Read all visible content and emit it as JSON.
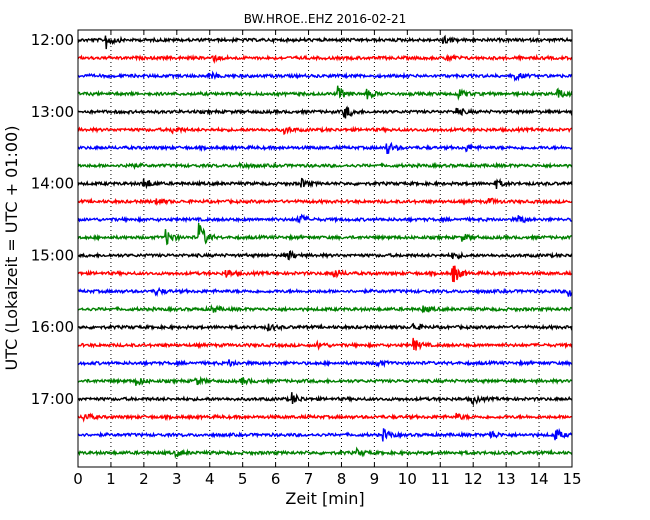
{
  "chart_data": {
    "type": "line",
    "title": "BW.HROE..EHZ 2016-02-21",
    "xlabel": "Zeit  [min]",
    "ylabel": "UTC (Lokalzeit = UTC + 01:00)",
    "xlim": [
      0,
      15
    ],
    "xticks": [
      0,
      1,
      2,
      3,
      4,
      5,
      6,
      7,
      8,
      9,
      10,
      11,
      12,
      13,
      14,
      15
    ],
    "yticks": [
      {
        "label": "12:00",
        "trace": 0
      },
      {
        "label": "13:00",
        "trace": 4
      },
      {
        "label": "14:00",
        "trace": 8
      },
      {
        "label": "15:00",
        "trace": 12
      },
      {
        "label": "16:00",
        "trace": 16
      },
      {
        "label": "17:00",
        "trace": 20
      }
    ],
    "grid": "vertical-dotted",
    "trace_minutes": 15,
    "trace_colors": [
      "#000000",
      "#ff0000",
      "#0000ff",
      "#008000"
    ],
    "series": [
      {
        "start": "12:00",
        "color": "#000000",
        "events": [
          {
            "t": 0.85,
            "amp": 9
          },
          {
            "t": 11.1,
            "amp": 4
          }
        ]
      },
      {
        "start": "12:15",
        "color": "#ff0000",
        "events": [
          {
            "t": 4.1,
            "amp": 3
          },
          {
            "t": 11.2,
            "amp": 3
          }
        ]
      },
      {
        "start": "12:30",
        "color": "#0000ff",
        "events": [
          {
            "t": 4.0,
            "amp": 3
          },
          {
            "t": 13.3,
            "amp": 3
          }
        ]
      },
      {
        "start": "12:45",
        "color": "#008000",
        "events": [
          {
            "t": 7.9,
            "amp": 7
          },
          {
            "t": 8.8,
            "amp": 4
          },
          {
            "t": 11.6,
            "amp": 4
          },
          {
            "t": 14.6,
            "amp": 4
          }
        ]
      },
      {
        "start": "13:00",
        "color": "#000000",
        "events": [
          {
            "t": 8.1,
            "amp": 7
          },
          {
            "t": 11.5,
            "amp": 4
          }
        ]
      },
      {
        "start": "13:15",
        "color": "#ff0000",
        "events": [
          {
            "t": 2.9,
            "amp": 3
          },
          {
            "t": 6.3,
            "amp": 3
          }
        ]
      },
      {
        "start": "13:30",
        "color": "#0000ff",
        "events": [
          {
            "t": 9.4,
            "amp": 6
          },
          {
            "t": 11.8,
            "amp": 3
          }
        ]
      },
      {
        "start": "13:45",
        "color": "#008000",
        "events": [
          {
            "t": 1.5,
            "amp": 3
          },
          {
            "t": 4.9,
            "amp": 3
          }
        ]
      },
      {
        "start": "14:00",
        "color": "#000000",
        "events": [
          {
            "t": 2.0,
            "amp": 6
          },
          {
            "t": 6.8,
            "amp": 4
          },
          {
            "t": 12.7,
            "amp": 4
          }
        ]
      },
      {
        "start": "14:15",
        "color": "#ff0000",
        "events": [
          {
            "t": 2.4,
            "amp": 3
          },
          {
            "t": 12.5,
            "amp": 3
          }
        ]
      },
      {
        "start": "14:30",
        "color": "#0000ff",
        "events": [
          {
            "t": 6.7,
            "amp": 6
          },
          {
            "t": 13.4,
            "amp": 4
          }
        ]
      },
      {
        "start": "14:45",
        "color": "#008000",
        "events": [
          {
            "t": 2.7,
            "amp": 7
          },
          {
            "t": 3.7,
            "amp": 14
          },
          {
            "t": 11.7,
            "amp": 3
          }
        ]
      },
      {
        "start": "15:00",
        "color": "#000000",
        "events": [
          {
            "t": 6.4,
            "amp": 4
          },
          {
            "t": 11.4,
            "amp": 3
          }
        ]
      },
      {
        "start": "15:15",
        "color": "#ff0000",
        "events": [
          {
            "t": 4.5,
            "amp": 4
          },
          {
            "t": 7.8,
            "amp": 4
          },
          {
            "t": 11.4,
            "amp": 10
          }
        ]
      },
      {
        "start": "15:30",
        "color": "#0000ff",
        "events": [
          {
            "t": 2.4,
            "amp": 3
          },
          {
            "t": 14.9,
            "amp": 5
          }
        ]
      },
      {
        "start": "15:45",
        "color": "#008000",
        "events": [
          {
            "t": 4.1,
            "amp": 3
          },
          {
            "t": 10.5,
            "amp": 3
          }
        ]
      },
      {
        "start": "16:00",
        "color": "#000000",
        "events": [
          {
            "t": 5.8,
            "amp": 3
          },
          {
            "t": 10.2,
            "amp": 4
          }
        ]
      },
      {
        "start": "16:15",
        "color": "#ff0000",
        "events": [
          {
            "t": 10.2,
            "amp": 6
          },
          {
            "t": 7.3,
            "amp": 3
          }
        ]
      },
      {
        "start": "16:30",
        "color": "#0000ff",
        "events": [
          {
            "t": 4.6,
            "amp": 3
          },
          {
            "t": 9.1,
            "amp": 3
          }
        ]
      },
      {
        "start": "16:45",
        "color": "#008000",
        "events": [
          {
            "t": 1.8,
            "amp": 4
          },
          {
            "t": 3.6,
            "amp": 3
          },
          {
            "t": 5.0,
            "amp": 3
          }
        ]
      },
      {
        "start": "17:00",
        "color": "#000000",
        "events": [
          {
            "t": 6.5,
            "amp": 6
          },
          {
            "t": 12.0,
            "amp": 4
          }
        ]
      },
      {
        "start": "17:15",
        "color": "#ff0000",
        "events": [
          {
            "t": 0.2,
            "amp": 4
          },
          {
            "t": 11.5,
            "amp": 3
          }
        ]
      },
      {
        "start": "17:30",
        "color": "#0000ff",
        "events": [
          {
            "t": 9.3,
            "amp": 5
          },
          {
            "t": 12.5,
            "amp": 5
          },
          {
            "t": 14.5,
            "amp": 6
          }
        ]
      },
      {
        "start": "17:45",
        "color": "#008000",
        "events": [
          {
            "t": 3.0,
            "amp": 3
          },
          {
            "t": 8.5,
            "amp": 3
          }
        ]
      }
    ]
  }
}
